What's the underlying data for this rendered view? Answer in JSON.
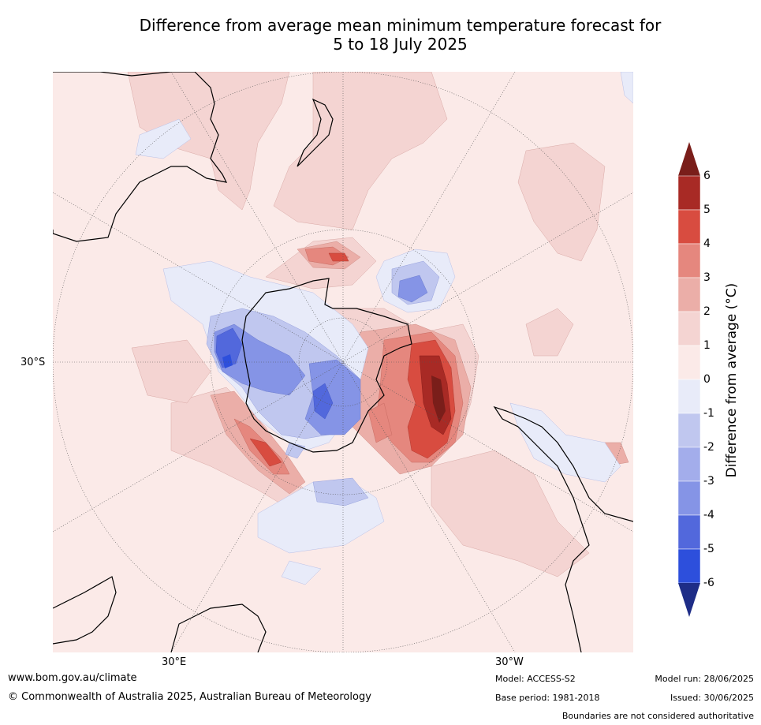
{
  "title_line1": "Difference from average mean minimum temperature forecast for",
  "title_line2": "5 to 18 July 2025",
  "map": {
    "projection": "south polar stereographic",
    "lat_tick": "30°S",
    "lon_tick_left": "30°E",
    "lon_tick_right": "30°W",
    "colors": {
      "ocean_near_zero_warm": "#fbeae8",
      "warm1": "#f4d4d2",
      "warm2": "#ebaea8",
      "warm3": "#e5877e",
      "warm4": "#d84c40",
      "warm5": "#a82a25",
      "warm6": "#7a1e1a",
      "cool0": "#e8ebf9",
      "cool1": "#c0c7ef",
      "cool2": "#8594e6",
      "cool3": "#5268dc",
      "cool4": "#2d4fdc",
      "coast": "#000000"
    }
  },
  "colorbar": {
    "title": "Difference from average (°C)",
    "ticks": [
      "6",
      "5",
      "4",
      "3",
      "2",
      "1",
      "0",
      "-1",
      "-2",
      "-3",
      "-4",
      "-5",
      "-6"
    ],
    "bins": [
      {
        "range": "5 to 6",
        "color": "#a82a25"
      },
      {
        "range": "4 to 5",
        "color": "#d84c40"
      },
      {
        "range": "3 to 4",
        "color": "#e5877e"
      },
      {
        "range": "2 to 3",
        "color": "#ebaea8"
      },
      {
        "range": "1 to 2",
        "color": "#f4d4d2"
      },
      {
        "range": "0 to 1",
        "color": "#fbeae8"
      },
      {
        "range": "-1 to 0",
        "color": "#e8ebf9"
      },
      {
        "range": "-2 to -1",
        "color": "#c0c7ef"
      },
      {
        "range": "-3 to -2",
        "color": "#a3adeb"
      },
      {
        "range": "-4 to -3",
        "color": "#8594e6"
      },
      {
        "range": "-5 to -4",
        "color": "#5268dc"
      },
      {
        "range": "-6 to -5",
        "color": "#2d4fdc"
      }
    ],
    "over_color": "#7a1e1a",
    "under_color": "#1e2d87",
    "extra_under": "#2a3fae"
  },
  "footer": {
    "website": "www.bom.gov.au/climate",
    "copyright": "© Commonwealth of Australia 2025, Australian Bureau of Meteorology",
    "model": "Model: ACCESS-S2",
    "base_period": "Base period: 1981-2018",
    "model_run": "Model run: 28/06/2025",
    "issued": "Issued: 30/06/2025",
    "disclaimer": "Boundaries are not considered authoritative"
  }
}
